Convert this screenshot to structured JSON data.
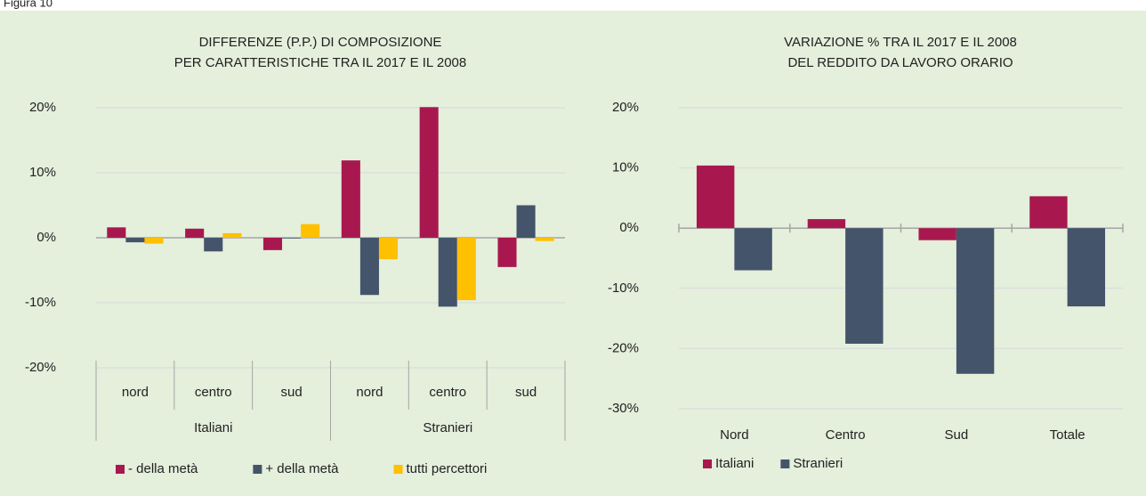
{
  "figure_label": "Figura 10",
  "chart_data": [
    {
      "type": "bar",
      "title": [
        "DIFFERENZE (P.P.) DI COMPOSIZIONE",
        "PER CARATTERISTICHE TRA IL 2017 E IL 2008"
      ],
      "groups": [
        "Italiani",
        "Stranieri"
      ],
      "categories": [
        "nord",
        "centro",
        "sud",
        "nord",
        "centro",
        "sud"
      ],
      "series": [
        {
          "name": "- della metà",
          "color": "#a8184f",
          "values": [
            1.6,
            1.4,
            -1.9,
            11.9,
            20.1,
            -4.5
          ]
        },
        {
          "name": "+ della metà",
          "color": "#44546a",
          "values": [
            -0.7,
            -2.1,
            -0.1,
            -8.8,
            -10.6,
            5.0
          ]
        },
        {
          "name": "tutti percettori",
          "color": "#ffc000",
          "values": [
            -0.9,
            0.7,
            2.1,
            -3.3,
            -9.6,
            -0.5
          ]
        }
      ],
      "ylim": [
        -20,
        20
      ],
      "yticks": [
        {
          "value": -20,
          "label": "-20%"
        },
        {
          "value": -10,
          "label": "-10%"
        },
        {
          "value": 0,
          "label": "0%"
        },
        {
          "value": 10,
          "label": "10%"
        },
        {
          "value": 20,
          "label": "20%"
        }
      ],
      "grid": true,
      "legend": "bottom"
    },
    {
      "type": "bar",
      "title": [
        "VARIAZIONE % TRA IL 2017 E IL 2008",
        "DEL REDDITO DA LAVORO ORARIO"
      ],
      "categories": [
        "Nord",
        "Centro",
        "Sud",
        "Totale"
      ],
      "series": [
        {
          "name": "Italiani",
          "color": "#a8184f",
          "values": [
            10.4,
            1.5,
            -2.0,
            5.3
          ]
        },
        {
          "name": "Stranieri",
          "color": "#44546a",
          "values": [
            -7.0,
            -19.2,
            -24.2,
            -13.0
          ]
        }
      ],
      "ylim": [
        -30,
        20
      ],
      "yticks": [
        {
          "value": -30,
          "label": "-30%"
        },
        {
          "value": -20,
          "label": "-20%"
        },
        {
          "value": -10,
          "label": "-10%"
        },
        {
          "value": 0,
          "label": "0%"
        },
        {
          "value": 10,
          "label": "10%"
        },
        {
          "value": 20,
          "label": "20%"
        }
      ],
      "grid": true,
      "legend": "bottom"
    }
  ]
}
